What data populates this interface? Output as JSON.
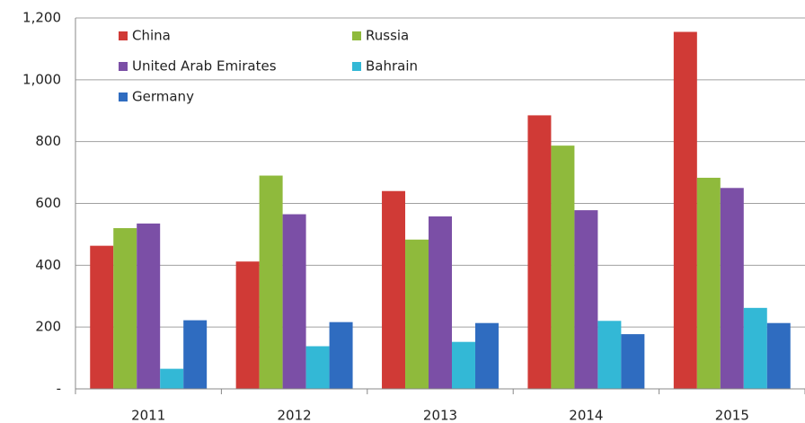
{
  "chart_data": {
    "type": "bar",
    "categories": [
      "2011",
      "2012",
      "2013",
      "2014",
      "2015"
    ],
    "series": [
      {
        "name": "China",
        "color": "#d03a36",
        "values": [
          463,
          412,
          640,
          885,
          1155
        ]
      },
      {
        "name": "Russia",
        "color": "#8fba3c",
        "values": [
          520,
          690,
          483,
          787,
          683
        ]
      },
      {
        "name": "United Arab Emirates",
        "color": "#7b4fa6",
        "values": [
          535,
          565,
          558,
          578,
          650
        ]
      },
      {
        "name": "Bahrain",
        "color": "#33b8d6",
        "values": [
          65,
          138,
          152,
          220,
          262
        ]
      },
      {
        "name": "Germany",
        "color": "#2f6cc0",
        "values": [
          222,
          216,
          213,
          177,
          213
        ]
      }
    ],
    "ylim": [
      0,
      1200
    ],
    "yticks": [
      {
        "value": 0,
        "label": "-"
      },
      200,
      400,
      600,
      800,
      {
        "value": 1000,
        "label": "1,000"
      },
      {
        "value": 1200,
        "label": "1,200"
      }
    ],
    "grid": true,
    "legend": "top-left"
  }
}
